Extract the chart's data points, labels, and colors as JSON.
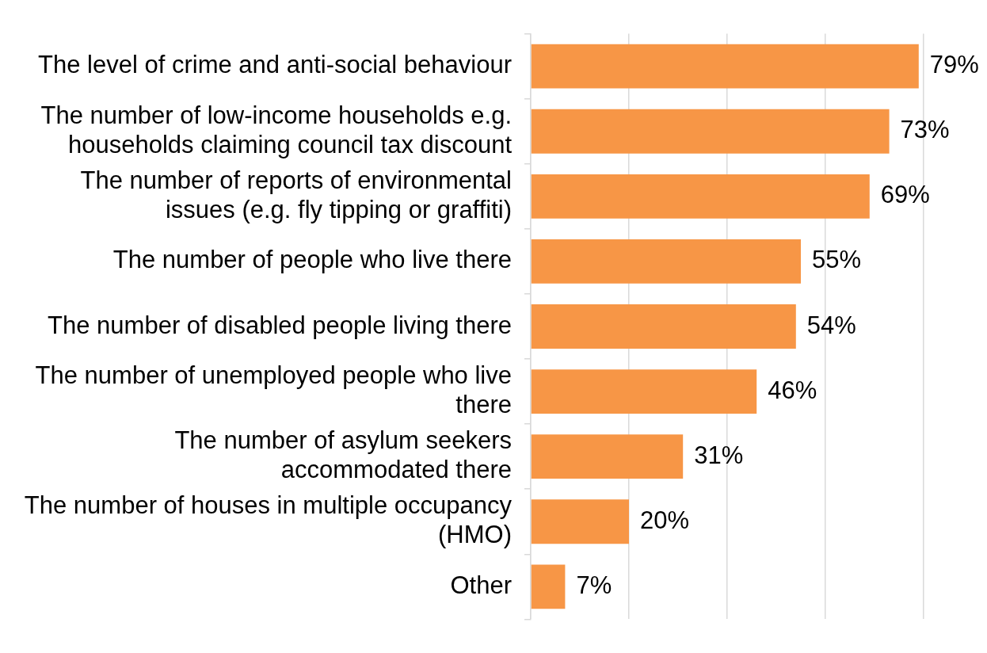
{
  "chart_data": {
    "type": "bar",
    "orientation": "horizontal",
    "categories": [
      "The level of crime and anti-social behaviour",
      "The number of low-income households e.g. households claiming council tax discount",
      "The number of reports of environmental issues (e.g. fly tipping or graffiti)",
      "The number of people who live there",
      "The number of disabled people living there",
      "The number of unemployed people who live there",
      "The number of asylum seekers accommodated there",
      "The number of houses in multiple occupancy (HMO)",
      "Other"
    ],
    "values": [
      79,
      73,
      69,
      55,
      54,
      46,
      31,
      20,
      7
    ],
    "value_labels": [
      "79%",
      "73%",
      "69%",
      "55%",
      "54%",
      "46%",
      "31%",
      "20%",
      "7%"
    ],
    "color": "#f79646",
    "xlim": [
      0,
      80
    ],
    "xticks": [
      {
        "value": 0,
        "label": null
      },
      {
        "value": 20,
        "label": null
      },
      {
        "value": 40,
        "label": null
      },
      {
        "value": 60,
        "label": null
      },
      {
        "value": 80,
        "label": null
      }
    ],
    "grid": "x",
    "tick_labels": "y",
    "legend": false
  }
}
